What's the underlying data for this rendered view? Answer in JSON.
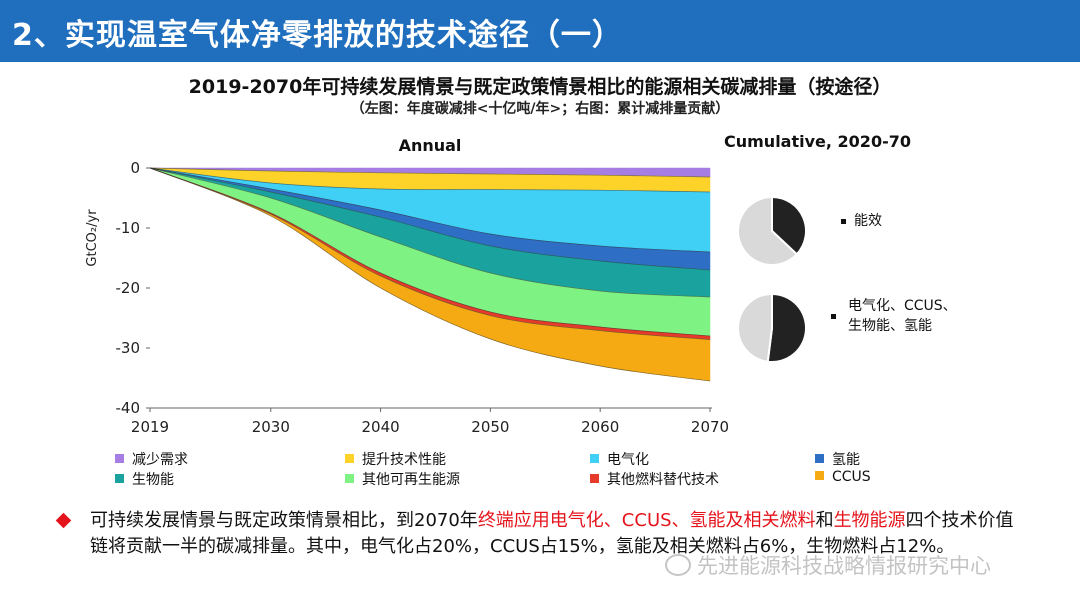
{
  "header": {
    "title": "2、实现温室气体净零排放的技术途径（一）"
  },
  "figure": {
    "title": "2019-2070年可持续发展情景与既定政策情景相比的能源相关碳减排量（按途径）",
    "subtitle": "（左图：年度碳减排<十亿吨/年>；右图：累计减排量贡献）"
  },
  "chart_data": [
    {
      "type": "area",
      "title": "Annual",
      "ylabel": "GtCO₂/yr",
      "ylim": [
        -40,
        0
      ],
      "yticks": [
        0,
        -10,
        -20,
        -30,
        -40
      ],
      "xlim": [
        2019,
        2070
      ],
      "xticks": [
        2019,
        2030,
        2040,
        2050,
        2060,
        2070
      ],
      "x": [
        2019,
        2030,
        2040,
        2050,
        2060,
        2070
      ],
      "grid": false,
      "legend": "bottom",
      "note": "values are cumulative stacked boundaries (GtCO2/yr)",
      "series": [
        {
          "name": "减少需求",
          "color": "#a67de3",
          "boundary": [
            0,
            -0.5,
            -0.8,
            -1.0,
            -1.2,
            -1.5
          ]
        },
        {
          "name": "提升技术性能",
          "color": "#fdd32a",
          "boundary": [
            0,
            -2.5,
            -3.5,
            -3.6,
            -3.7,
            -4.0
          ]
        },
        {
          "name": "电气化",
          "color": "#40d0f5",
          "boundary": [
            0,
            -3.5,
            -7.0,
            -11.0,
            -13.0,
            -14.0
          ]
        },
        {
          "name": "氢能",
          "color": "#2e6ec4",
          "boundary": [
            0,
            -4.0,
            -8.2,
            -13.0,
            -15.5,
            -17.0
          ]
        },
        {
          "name": "生物能",
          "color": "#1aa39e",
          "boundary": [
            0,
            -5.0,
            -11.5,
            -17.5,
            -20.5,
            -21.5
          ]
        },
        {
          "name": "其他可再生能源",
          "color": "#7ef282",
          "boundary": [
            0,
            -7.5,
            -17.5,
            -24.0,
            -26.5,
            -28.0
          ]
        },
        {
          "name": "其他燃料替代技术",
          "color": "#e63a2a",
          "boundary": [
            0,
            -7.7,
            -18.0,
            -24.6,
            -27.1,
            -28.6
          ]
        },
        {
          "name": "CCUS",
          "color": "#f5aa14",
          "boundary": [
            0,
            -8.0,
            -20.0,
            -28.5,
            -33.0,
            -35.5
          ]
        }
      ]
    },
    {
      "type": "pie",
      "title": "Cumulative, 2020-70",
      "pies": [
        {
          "label": "能效",
          "slices": [
            {
              "name": "能效",
              "value": 37,
              "color": "#222222"
            },
            {
              "name": "其他",
              "value": 63,
              "color": "#d9d9d9"
            }
          ]
        },
        {
          "label": "电气化、CCUS、生物能、氢能",
          "slices": [
            {
              "name": "电气化、CCUS、生物能、氢能",
              "value": 52,
              "color": "#222222"
            },
            {
              "name": "其他",
              "value": 48,
              "color": "#d9d9d9"
            }
          ]
        }
      ]
    }
  ],
  "pies_text": {
    "pie1": "能效",
    "pie2_line1": "电气化、CCUS、",
    "pie2_line2": "生物能、氢能"
  },
  "bullet": {
    "part1": "可持续发展情景与既定政策情景相比，到2070年",
    "part2_red": "终端应用电气化、CCUS、氢能及相关燃料",
    "part3": "和",
    "part4_red": "生物能源",
    "part5": "四个技术价值链将贡献一半的碳减排量。其中，电气化占20%，CCUS占15%，氢能及相关燃料占6%，生物燃料占12%。"
  },
  "watermark": "先进能源科技战略情报研究中心",
  "colors": {
    "header_bg": "#1f6fbe",
    "highlight": "#e5141c"
  }
}
